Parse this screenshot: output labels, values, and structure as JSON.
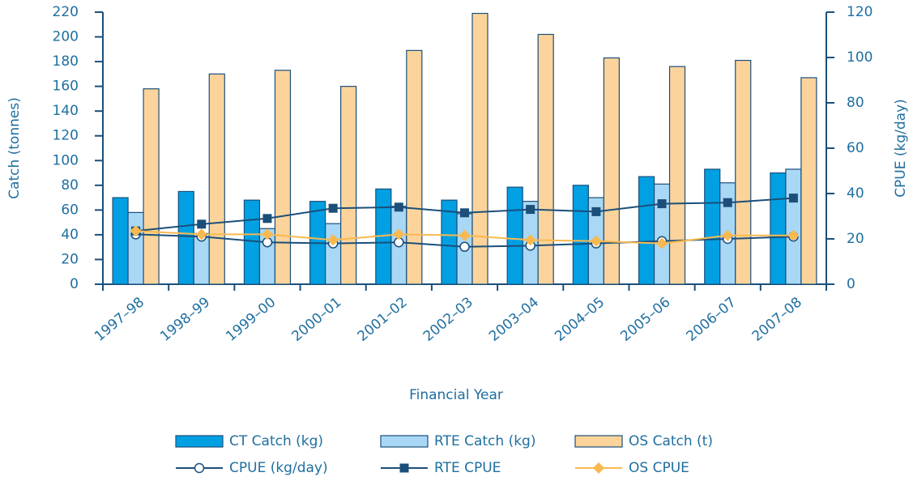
{
  "chart_data": {
    "type": "combo",
    "x_label": "Financial Year",
    "y_label": "Catch (tonnes)",
    "y2_label": "CPUE (kg/day)",
    "categories": [
      "1997–98",
      "1998–99",
      "1999–00",
      "2000–01",
      "2001–02",
      "2002–03",
      "2003–04",
      "2004–05",
      "2005–06",
      "2006–07",
      "2007–08"
    ],
    "ylim": [
      0,
      220
    ],
    "yticks": [
      0,
      20,
      40,
      60,
      80,
      100,
      120,
      140,
      160,
      180,
      200,
      220
    ],
    "y2lim": [
      0,
      120
    ],
    "y2ticks": [
      0,
      20,
      40,
      60,
      80,
      100,
      120
    ],
    "legend": "bottom",
    "series": [
      {
        "name": "CT Catch (kg)",
        "type": "bar",
        "color": "#00a0e3",
        "values": [
          70,
          75,
          68,
          67,
          77,
          68,
          78.5,
          80,
          87,
          93,
          90
        ]
      },
      {
        "name": "RTE Catch (kg)",
        "type": "bar",
        "color": "#a8d8f5",
        "values": [
          58,
          41,
          45,
          49,
          63,
          57,
          67,
          70,
          81,
          82,
          93
        ]
      },
      {
        "name": "OS Catch (t)",
        "type": "bar",
        "color": "#fcd49b",
        "values": [
          158,
          170,
          173,
          160,
          189,
          219,
          202,
          183,
          176,
          181,
          167
        ]
      },
      {
        "name": "CPUE (kg/day)",
        "type": "line",
        "axis": "y2",
        "marker": "circle",
        "color": "#1b4f7a",
        "values": [
          22,
          21,
          18.5,
          18,
          18.5,
          16.5,
          17,
          18,
          19,
          20,
          21
        ]
      },
      {
        "name": "RTE CPUE",
        "type": "line",
        "axis": "y2",
        "marker": "square",
        "color": "#1b4f7a",
        "values": [
          23.5,
          26.5,
          29,
          33.5,
          34,
          31.5,
          33,
          32,
          35.5,
          36,
          38
        ]
      },
      {
        "name": "OS CPUE",
        "type": "line",
        "axis": "y2",
        "marker": "diamond",
        "color": "#f9b94f",
        "values": [
          23.5,
          22,
          22,
          19.5,
          22,
          21.5,
          19.5,
          19,
          18,
          21.5,
          21.5
        ]
      }
    ]
  }
}
